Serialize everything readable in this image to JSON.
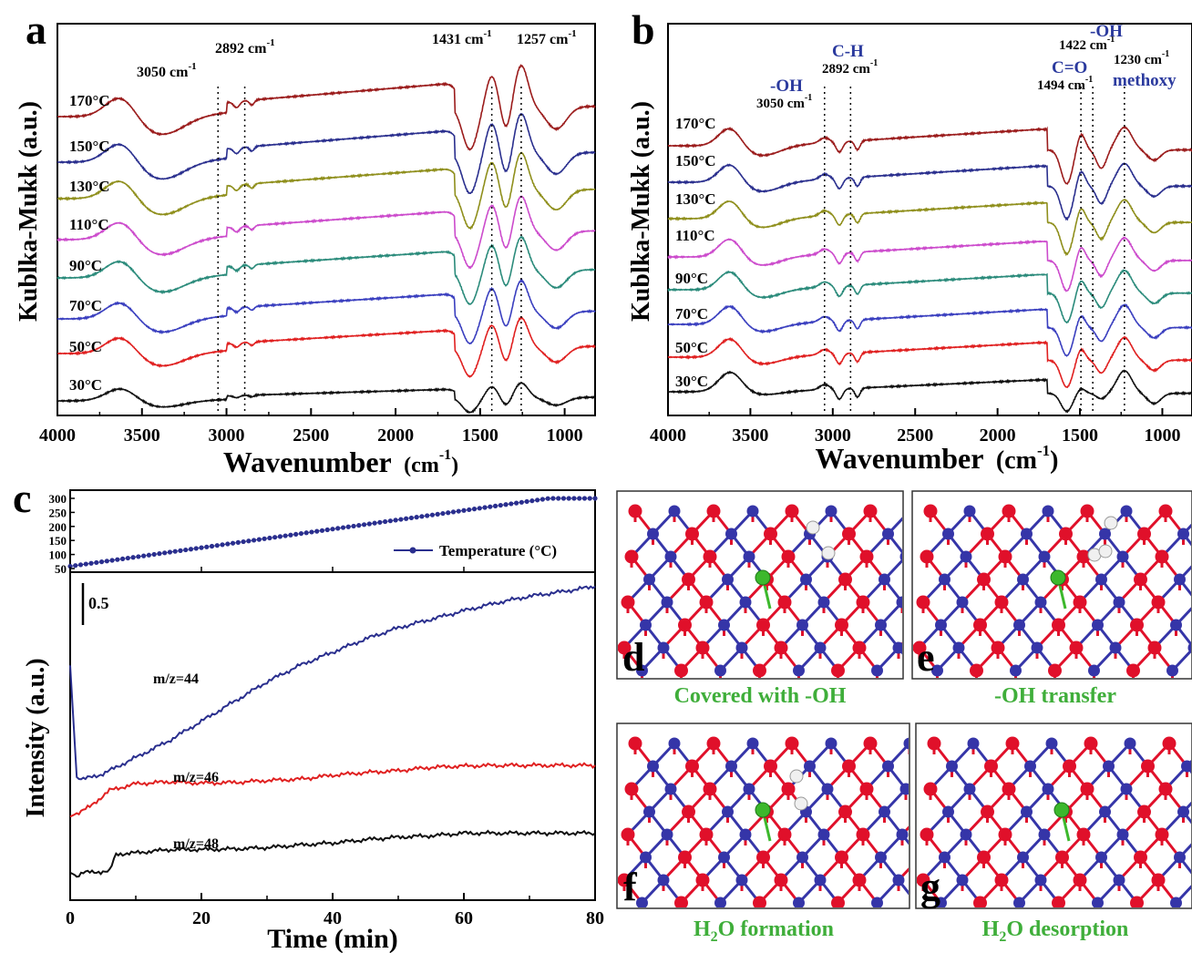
{
  "panels": {
    "a": "a",
    "b": "b",
    "c": "c",
    "d": "d",
    "e": "e",
    "f": "f",
    "g": "g"
  },
  "captions": {
    "d": "Covered with -OH",
    "e": "-OH transfer",
    "f_pre": "H",
    "f_sub": "2",
    "f_post": "O formation",
    "g_pre": "H",
    "g_sub": "2",
    "g_post": "O desorption"
  },
  "colors": {
    "dark_red": "#9b1c1c",
    "navy": "#2a2f8e",
    "olive": "#8f8f1c",
    "magenta": "#cc4bcc",
    "teal": "#2b8b7b",
    "blue": "#3a3fbf",
    "red": "#e02020",
    "black": "#111111",
    "label_blue": "#2b3a9e",
    "caption_green": "#3fae3a",
    "atom_red": "#e0102a",
    "atom_blue": "#3535a8",
    "atom_green": "#3cb82c",
    "atom_white": "#f0f0f0"
  },
  "chart_data": [
    {
      "panel": "a",
      "type": "line",
      "xlabel": "Wavenumber",
      "xunit_pre": "(cm",
      "xunit_sup": "-1",
      "xunit_post": ")",
      "ylabel": "Kublka-Mukk (a.u.)",
      "xlim": [
        4000,
        820
      ],
      "xticks": [
        4000,
        3500,
        3000,
        2500,
        2000,
        1500,
        1000
      ],
      "series": [
        {
          "name": "170°C",
          "color": "#9b1c1c"
        },
        {
          "name": "150°C",
          "color": "#2a2f8e"
        },
        {
          "name": "130°C",
          "color": "#8f8f1c"
        },
        {
          "name": "110°C",
          "color": "#cc4bcc"
        },
        {
          "name": "90°C",
          "color": "#2b8b7b"
        },
        {
          "name": "70°C",
          "color": "#3a3fbf"
        },
        {
          "name": "50°C",
          "color": "#e02020"
        },
        {
          "name": "30°C",
          "color": "#111111"
        }
      ],
      "annotations": [
        {
          "x": 3050,
          "text": "3050 cm",
          "sup": "-1"
        },
        {
          "x": 2892,
          "text": "2892 cm",
          "sup": "-1"
        },
        {
          "x": 1431,
          "text": "1431 cm",
          "sup": "-1"
        },
        {
          "x": 1257,
          "text": "1257 cm",
          "sup": "-1"
        }
      ]
    },
    {
      "panel": "b",
      "type": "line",
      "xlabel": "Wavenumber",
      "xunit_pre": "(cm",
      "xunit_sup": "-1",
      "xunit_post": ")",
      "ylabel": "Kublka-Mukk (a.u.)",
      "xlim": [
        4000,
        820
      ],
      "xticks": [
        4000,
        3500,
        3000,
        2500,
        2000,
        1500,
        1000
      ],
      "series": [
        {
          "name": "170°C",
          "color": "#9b1c1c"
        },
        {
          "name": "150°C",
          "color": "#2a2f8e"
        },
        {
          "name": "130°C",
          "color": "#8f8f1c"
        },
        {
          "name": "110°C",
          "color": "#cc4bcc"
        },
        {
          "name": "90°C",
          "color": "#2b8b7b"
        },
        {
          "name": "70°C",
          "color": "#3a3fbf"
        },
        {
          "name": "50°C",
          "color": "#e02020"
        },
        {
          "name": "30°C",
          "color": "#111111"
        }
      ],
      "annotations": [
        {
          "x": 3050,
          "group": "-OH",
          "text": "3050 cm",
          "sup": "-1"
        },
        {
          "x": 2892,
          "group": "C-H",
          "text": "2892 cm",
          "sup": "-1"
        },
        {
          "x": 1494,
          "group": "C=O",
          "text": "1494 cm",
          "sup": "-1"
        },
        {
          "x": 1422,
          "group": "-OH",
          "text": "1422 cm",
          "sup": "-1"
        },
        {
          "x": 1230,
          "group": "methoxy",
          "text": "1230 cm",
          "sup": "-1"
        }
      ]
    },
    {
      "panel": "c-top",
      "type": "scatter",
      "legend": "Temperature (°C)",
      "legend_position": "bottom-right",
      "ylim": [
        50,
        300
      ],
      "yticks": [
        50,
        100,
        150,
        200,
        250,
        300
      ],
      "xlim": [
        0,
        80
      ],
      "points_start": [
        0,
        58
      ],
      "points_end": [
        80,
        300
      ],
      "plateau_start_min": 73
    },
    {
      "panel": "c-bottom",
      "type": "line",
      "xlabel": "Time (min)",
      "ylabel": "Intensity (a.u.)",
      "xlim": [
        0,
        80
      ],
      "xticks": [
        0,
        20,
        40,
        60,
        80
      ],
      "scale_bar": "0.5",
      "series": [
        {
          "name": "m/z=44",
          "color": "#2a2f8e",
          "x": [
            0,
            1,
            2,
            5,
            10,
            15,
            20,
            25,
            30,
            35,
            40,
            45,
            50,
            55,
            60,
            65,
            70,
            75,
            80
          ],
          "y": [
            2.85,
            1.15,
            1.12,
            1.2,
            1.45,
            1.7,
            2.0,
            2.3,
            2.6,
            2.85,
            3.05,
            3.25,
            3.42,
            3.55,
            3.68,
            3.8,
            3.9,
            3.97,
            4.05
          ]
        },
        {
          "name": "m/z=46",
          "color": "#e02020",
          "x": [
            0,
            1,
            3,
            6,
            10,
            15,
            20,
            25,
            30,
            35,
            40,
            45,
            50,
            55,
            60,
            65,
            70,
            75,
            80
          ],
          "y": [
            0.55,
            0.6,
            0.7,
            0.95,
            1.05,
            1.08,
            1.06,
            1.07,
            1.1,
            1.12,
            1.18,
            1.22,
            1.25,
            1.3,
            1.32,
            1.33,
            1.33,
            1.33,
            1.33
          ]
        },
        {
          "name": "m/z=48",
          "color": "#111111",
          "x": [
            0,
            1,
            2,
            6,
            7,
            10,
            15,
            20,
            25,
            30,
            35,
            40,
            45,
            50,
            55,
            60,
            65,
            70,
            75,
            80
          ],
          "y": [
            -0.3,
            -0.35,
            -0.3,
            -0.28,
            -0.02,
            0.0,
            0.05,
            0.05,
            0.06,
            0.08,
            0.12,
            0.15,
            0.2,
            0.24,
            0.26,
            0.3,
            0.3,
            0.3,
            0.3,
            0.3
          ]
        }
      ]
    }
  ]
}
